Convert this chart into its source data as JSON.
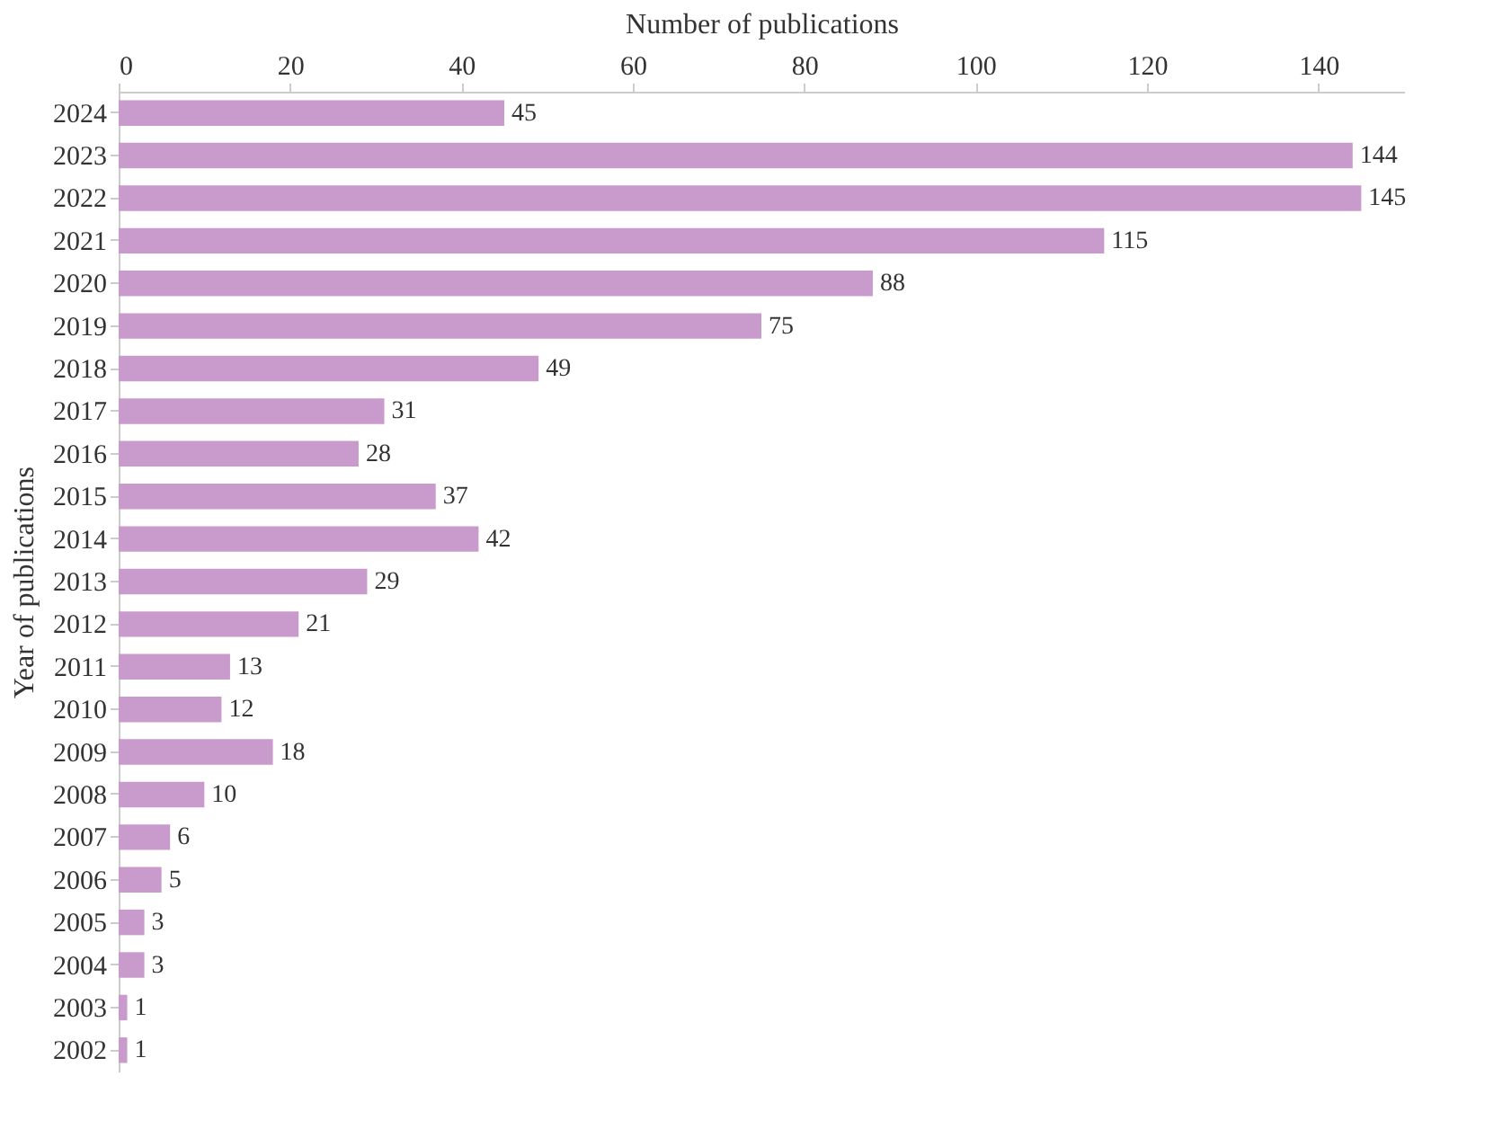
{
  "chart_data": {
    "type": "bar",
    "orientation": "horizontal",
    "xlabel": "Number of publications",
    "ylabel": "Year of publications",
    "categories": [
      "2024",
      "2023",
      "2022",
      "2021",
      "2020",
      "2019",
      "2018",
      "2017",
      "2016",
      "2015",
      "2014",
      "2013",
      "2012",
      "2011",
      "2010",
      "2009",
      "2008",
      "2007",
      "2006",
      "2005",
      "2004",
      "2003",
      "2002"
    ],
    "values": [
      45,
      144,
      145,
      115,
      88,
      75,
      49,
      31,
      28,
      37,
      42,
      29,
      21,
      13,
      12,
      18,
      10,
      6,
      5,
      3,
      3,
      1,
      1
    ],
    "color": "#c99bcc",
    "xlim": [
      0,
      150
    ],
    "xticks": [
      0,
      20,
      40,
      60,
      80,
      100,
      120,
      140
    ],
    "data_labels": true,
    "grid": false
  }
}
